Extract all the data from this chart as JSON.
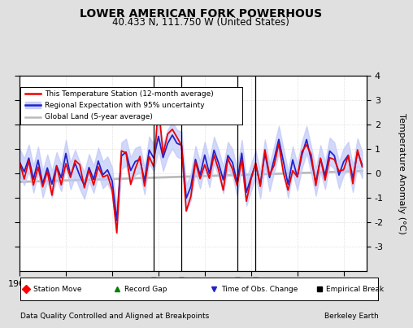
{
  "title": "LOWER AMERICAN FORK POWERHOUS",
  "subtitle": "40.433 N, 111.750 W (United States)",
  "xlabel_left": "Data Quality Controlled and Aligned at Breakpoints",
  "xlabel_right": "Berkeley Earth",
  "ylabel": "Temperature Anomaly (°C)",
  "xmin": 1900,
  "xmax": 1975,
  "ymin": -4,
  "ymax": 4,
  "background_color": "#e0e0e0",
  "plot_background": "#ffffff",
  "red_color": "#ee0000",
  "blue_color": "#2222cc",
  "blue_fill_color": "#c0c8f8",
  "gray_color": "#bbbbbb",
  "vertical_line_years": [
    1929,
    1935,
    1947,
    1951
  ],
  "empirical_break_years": [
    1929,
    1935,
    1947,
    1951
  ],
  "legend_entries": [
    "This Temperature Station (12-month average)",
    "Regional Expectation with 95% uncertainty",
    "Global Land (5-year average)"
  ]
}
